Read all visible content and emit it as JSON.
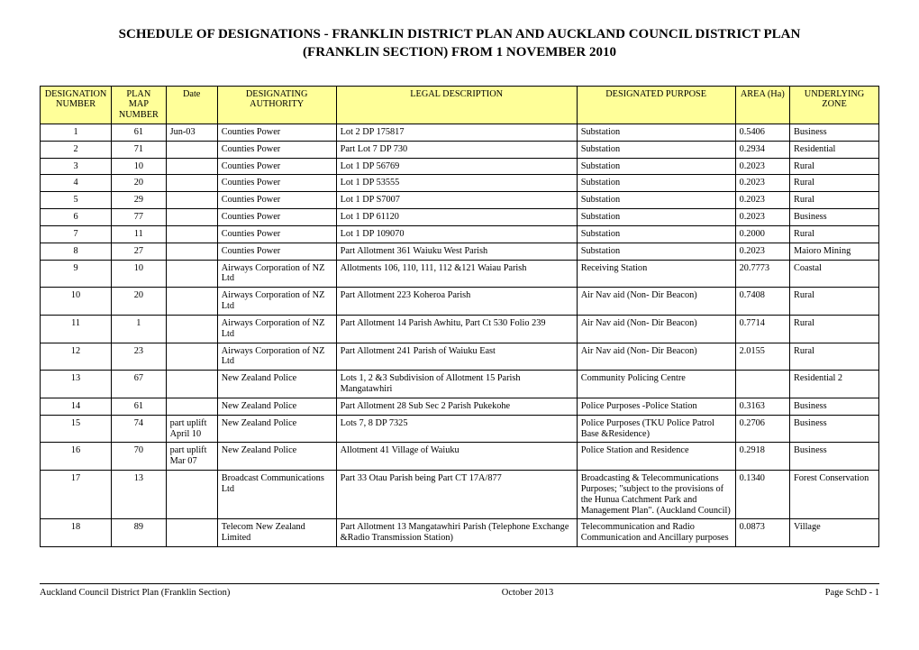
{
  "title_line1": "SCHEDULE OF DESIGNATIONS - FRANKLIN DISTRICT PLAN AND AUCKLAND COUNCIL DISTRICT PLAN",
  "title_line2": "(FRANKLIN SECTION) FROM 1 NOVEMBER 2010",
  "columns": [
    "DESIGNATION NUMBER",
    "PLAN MAP NUMBER",
    "Date",
    "DESIGNATING AUTHORITY",
    "LEGAL DESCRIPTION",
    "DESIGNATED PURPOSE",
    "AREA (Ha)",
    "UNDERLYING ZONE"
  ],
  "col_align": [
    "center",
    "center",
    "left",
    "left",
    "left",
    "left",
    "left",
    "left"
  ],
  "rows": [
    [
      "1",
      "61",
      "Jun-03",
      "Counties Power",
      "Lot 2  DP 175817",
      "Substation",
      "0.5406",
      "Business"
    ],
    [
      "2",
      "71",
      "",
      "Counties Power",
      "Part Lot 7  DP 730",
      "Substation",
      "0.2934",
      "Residential"
    ],
    [
      "3",
      "10",
      "",
      "Counties Power",
      "Lot 1 DP  56769",
      "Substation",
      "0.2023",
      "Rural"
    ],
    [
      "4",
      "20",
      "",
      "Counties Power",
      "Lot 1 DP 53555",
      "Substation",
      "0.2023",
      "Rural"
    ],
    [
      "5",
      "29",
      "",
      "Counties Power",
      "Lot 1 DP S7007",
      "Substation",
      "0.2023",
      "Rural"
    ],
    [
      "6",
      "77",
      "",
      "Counties Power",
      "Lot 1 DP 61120",
      "Substation",
      "0.2023",
      "Business"
    ],
    [
      "7",
      "11",
      "",
      "Counties Power",
      "Lot 1 DP 109070",
      "Substation",
      "0.2000",
      "Rural"
    ],
    [
      "8",
      "27",
      "",
      "Counties Power",
      "Part Allotment 361 Waiuku West Parish",
      "Substation",
      "0.2023",
      "Maioro Mining"
    ],
    [
      "9",
      "10",
      "",
      "Airways Corporation of NZ Ltd",
      "Allotments 106, 110, 111, 112 &121 Waiau Parish",
      "Receiving Station",
      "20.7773",
      "Coastal"
    ],
    [
      "10",
      "20",
      "",
      "Airways Corporation of NZ Ltd",
      "Part Allotment 223 Koheroa Parish",
      "Air Nav aid (Non- Dir Beacon)",
      "0.7408",
      "Rural"
    ],
    [
      "11",
      "1",
      "",
      "Airways Corporation of NZ Ltd",
      "Part Allotment 14 Parish Awhitu, Part Ct 530 Folio 239",
      "Air Nav aid (Non- Dir Beacon)",
      "0.7714",
      "Rural"
    ],
    [
      "12",
      "23",
      "",
      "Airways Corporation of NZ Ltd",
      "Part Allotment 241 Parish of Waiuku East",
      "Air Nav aid (Non- Dir Beacon)",
      "2.0155",
      "Rural"
    ],
    [
      "13",
      "67",
      "",
      "New Zealand Police",
      "Lots 1, 2 &3 Subdivision of Allotment 15 Parish Mangatawhiri",
      "Community Policing Centre",
      "",
      "Residential 2"
    ],
    [
      "14",
      "61",
      "",
      "New Zealand Police",
      "Part Allotment 28 Sub Sec 2 Parish Pukekohe",
      "Police Purposes -Police Station",
      "0.3163",
      "Business"
    ],
    [
      "15",
      "74",
      "part uplift April 10",
      "New Zealand Police",
      "Lots 7, 8 DP 7325",
      "Police Purposes (TKU Police Patrol Base &Residence)",
      "0.2706",
      "Business"
    ],
    [
      "16",
      "70",
      "part uplift Mar 07",
      "New Zealand Police",
      "Allotment 41 Village of Waiuku",
      "Police Station and Residence",
      "0.2918",
      "Business"
    ],
    [
      "17",
      "13",
      "",
      "Broadcast Communications Ltd",
      "Part 33 Otau Parish being Part CT 17A/877",
      "Broadcasting & Telecommunications Purposes; \"subject to the provisions of the Hunua Catchment Park and Management Plan\". (Auckland Council)",
      "0.1340",
      "Forest Conservation"
    ],
    [
      "18",
      "89",
      "",
      "Telecom New Zealand Limited",
      "Part Allotment 13 Mangatawhiri Parish (Telephone Exchange &Radio Transmission Station)",
      "Telecommunication and Radio Communication and Ancillary purposes",
      "0.0873",
      "Village"
    ]
  ],
  "footer": {
    "left": "Auckland Council District Plan (Franklin Section)",
    "center": "October 2013",
    "right": "Page SchD - 1"
  }
}
